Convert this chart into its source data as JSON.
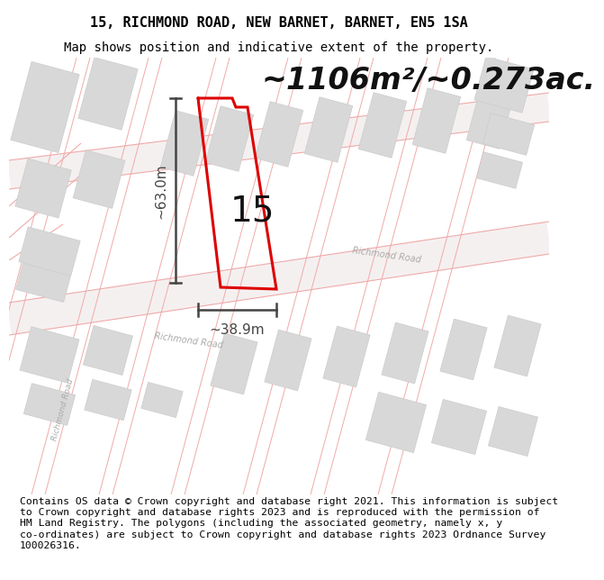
{
  "title_line1": "15, RICHMOND ROAD, NEW BARNET, BARNET, EN5 1SA",
  "title_line2": "Map shows position and indicative extent of the property.",
  "area_text": "~1106m²/~0.273ac.",
  "property_number": "15",
  "width_label": "~38.9m",
  "height_label": "~63.0m",
  "footer_text": "Contains OS data © Crown copyright and database right 2021. This information is subject to Crown copyright and database rights 2023 and is reproduced with the permission of HM Land Registry. The polygons (including the associated geometry, namely x, y co-ordinates) are subject to Crown copyright and database rights 2023 Ordnance Survey 100026316.",
  "bg_color": "#ffffff",
  "map_bg": "#ffffff",
  "road_line_color": "#f0aaaa",
  "building_color": "#d8d8d8",
  "building_edge": "#cccccc",
  "property_color": "#dd0000",
  "annotation_color": "#444444",
  "road_label_color": "#aaaaaa",
  "title_fontsize": 11,
  "subtitle_fontsize": 10,
  "area_fontsize": 24,
  "number_fontsize": 28,
  "annotation_fontsize": 11,
  "footer_fontsize": 8.2
}
